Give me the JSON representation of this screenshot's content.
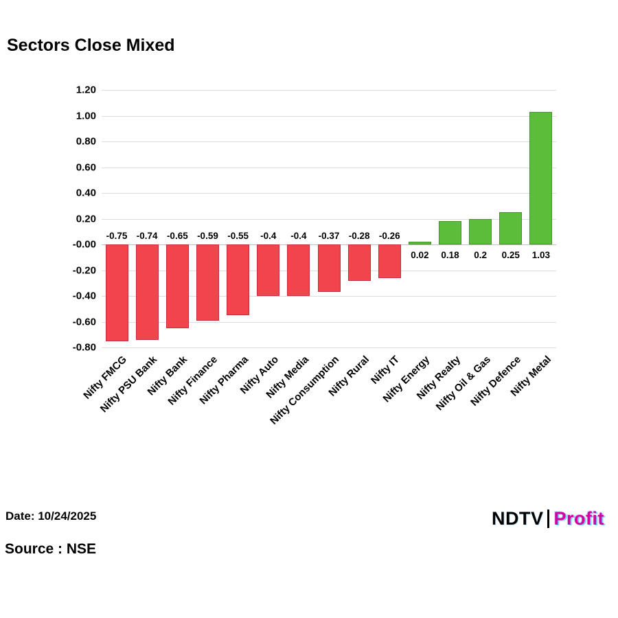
{
  "title": "Sectors Close Mixed",
  "footer": {
    "date": "Date: 10/24/2025",
    "source": "Source : NSE",
    "logo_ndtv": "NDTV",
    "logo_profit": "Profit"
  },
  "chart_data": {
    "type": "bar",
    "title": "Sectors Close Mixed",
    "categories": [
      "Nifty FMCG",
      "Nifty PSU Bank",
      "Nifty Bank",
      "Nifty Finance",
      "Nifty Pharma",
      "Nifty Auto",
      "Nifty Media",
      "Nifty Consumption",
      "Nifty Rural",
      "Nifty IT",
      "Nifty Energy",
      "Nifty Realty",
      "Nifty Oil & Gas",
      "Nifty Defence",
      "Nifty Metal"
    ],
    "values": [
      -0.75,
      -0.74,
      -0.65,
      -0.59,
      -0.55,
      -0.4,
      -0.4,
      -0.37,
      -0.28,
      -0.26,
      0.02,
      0.18,
      0.2,
      0.25,
      1.03
    ],
    "value_labels": [
      "-0.75",
      "-0.74",
      "-0.65",
      "-0.59",
      "-0.55",
      "-0.4",
      "-0.4",
      "-0.37",
      "-0.28",
      "-0.26",
      "0.02",
      "0.18",
      "0.2",
      "0.25",
      "1.03"
    ],
    "xlabel": "",
    "ylabel": "",
    "ylim": [
      -0.8,
      1.2
    ],
    "ytick_labels": [
      "1.20",
      "1.00",
      "0.80",
      "0.60",
      "0.40",
      "0.20",
      "-0.00",
      "-0.20",
      "-0.40",
      "-0.60",
      "-0.80"
    ],
    "ytick_values": [
      1.2,
      1.0,
      0.8,
      0.6,
      0.4,
      0.2,
      0.0,
      -0.2,
      -0.4,
      -0.6,
      -0.8
    ],
    "grid": true,
    "legend": false,
    "negative_color": "#f2444d",
    "negative_border": "#c22f38",
    "positive_color": "#5cbd3b",
    "positive_border": "#419427"
  }
}
